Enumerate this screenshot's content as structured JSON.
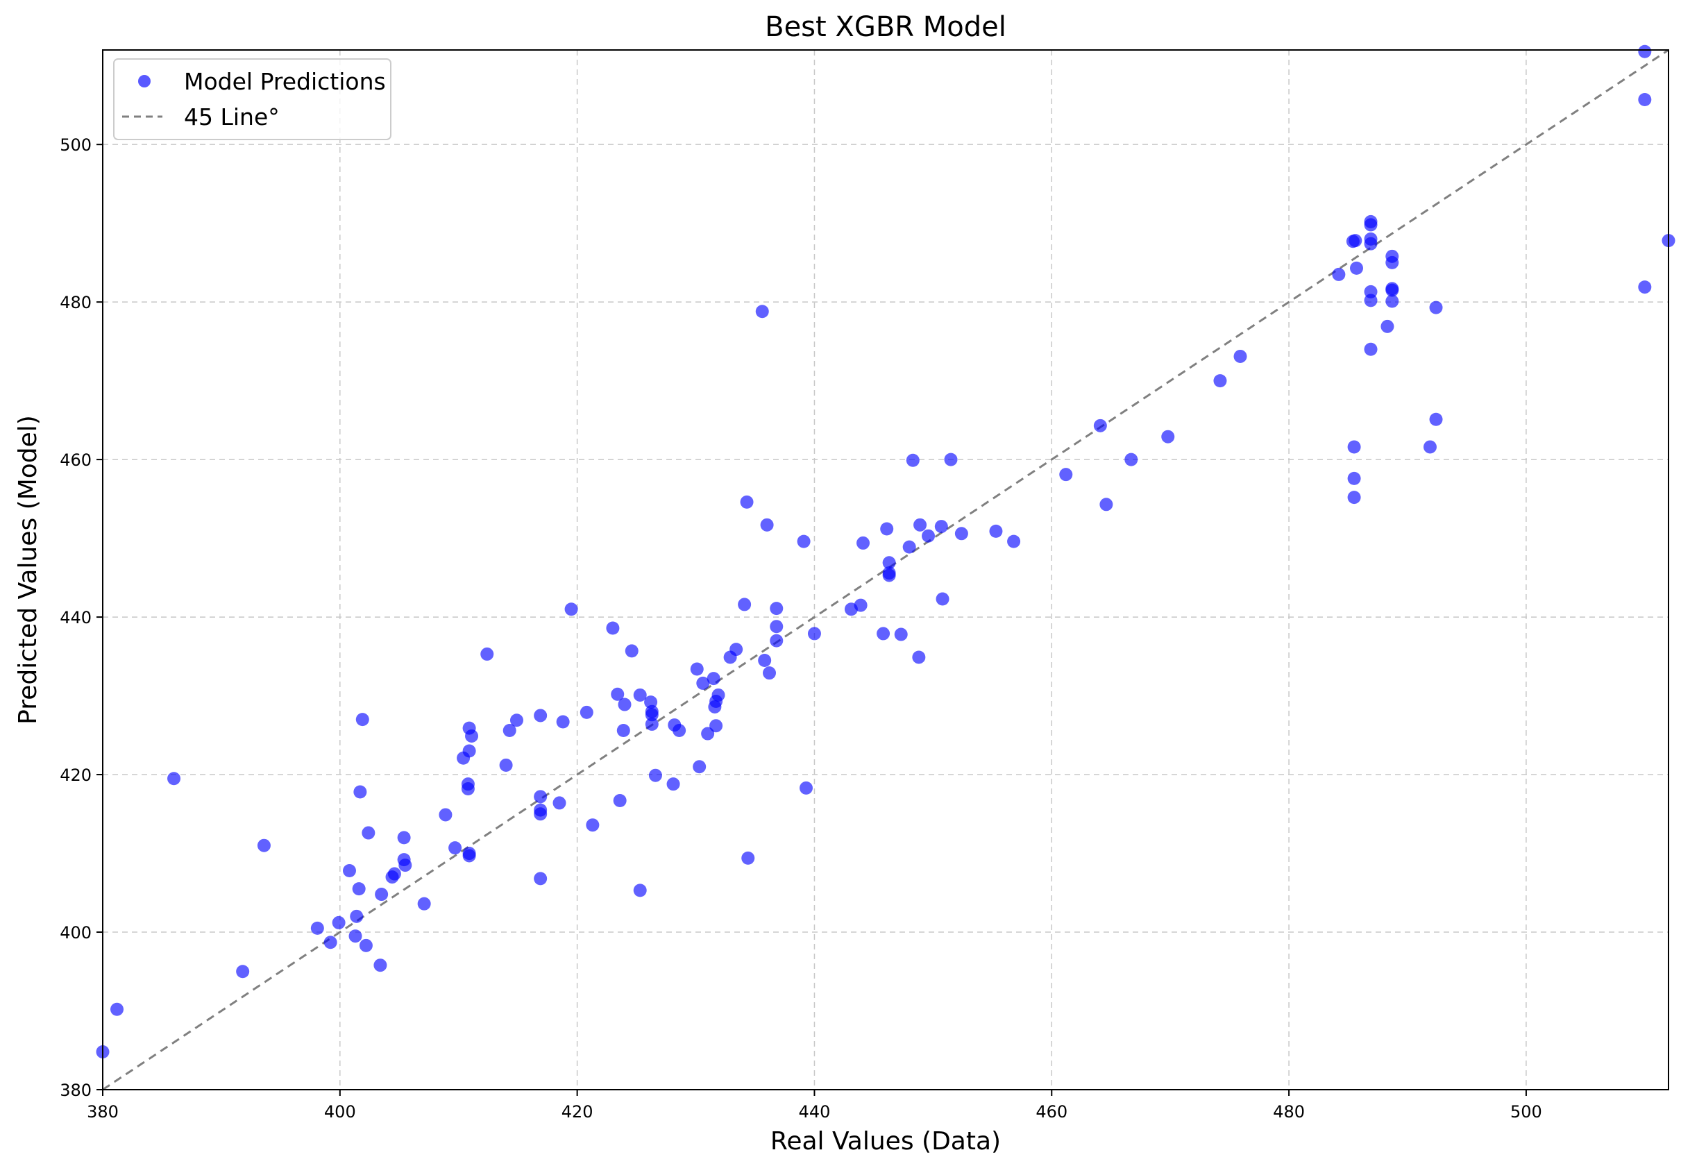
{
  "chart_data": {
    "type": "scatter",
    "title": "Best XGBR Model",
    "xlabel": "Real Values (Data)",
    "ylabel": "Predicted Values (Model)",
    "xlim": [
      380,
      512
    ],
    "ylim": [
      380,
      512
    ],
    "xticks": [
      "380",
      "400",
      "420",
      "440",
      "460",
      "480",
      "500"
    ],
    "yticks": [
      "380",
      "400",
      "420",
      "440",
      "460",
      "480",
      "500"
    ],
    "grid": true,
    "legend_position": "top-left",
    "colors": {
      "points": "#0000ff",
      "reference_line": "#808080"
    },
    "series": [
      {
        "name": "Model Predictions",
        "points": [
          [
            380.0,
            384.8
          ],
          [
            381.2,
            390.2
          ],
          [
            386.0,
            419.5
          ],
          [
            391.8,
            395.0
          ],
          [
            393.6,
            411.0
          ],
          [
            398.1,
            400.5
          ],
          [
            399.2,
            398.7
          ],
          [
            399.9,
            401.2
          ],
          [
            400.8,
            407.8
          ],
          [
            401.3,
            399.5
          ],
          [
            401.4,
            402.0
          ],
          [
            401.6,
            405.5
          ],
          [
            401.7,
            417.8
          ],
          [
            401.9,
            427.0
          ],
          [
            402.2,
            398.3
          ],
          [
            402.4,
            412.6
          ],
          [
            403.4,
            395.8
          ],
          [
            403.5,
            404.8
          ],
          [
            404.4,
            407.0
          ],
          [
            404.6,
            407.4
          ],
          [
            405.4,
            409.2
          ],
          [
            405.5,
            408.5
          ],
          [
            405.4,
            412.0
          ],
          [
            407.1,
            403.6
          ],
          [
            408.9,
            414.9
          ],
          [
            409.7,
            410.7
          ],
          [
            410.4,
            422.1
          ],
          [
            410.8,
            418.8
          ],
          [
            410.8,
            418.2
          ],
          [
            410.9,
            409.7
          ],
          [
            410.9,
            410.0
          ],
          [
            410.9,
            423.0
          ],
          [
            410.9,
            425.9
          ],
          [
            411.1,
            424.9
          ],
          [
            412.4,
            435.3
          ],
          [
            414.0,
            421.2
          ],
          [
            414.3,
            425.6
          ],
          [
            414.9,
            426.9
          ],
          [
            416.9,
            406.8
          ],
          [
            416.9,
            415.0
          ],
          [
            416.9,
            415.5
          ],
          [
            416.9,
            417.2
          ],
          [
            416.9,
            427.5
          ],
          [
            418.5,
            416.4
          ],
          [
            418.8,
            426.7
          ],
          [
            419.5,
            441.0
          ],
          [
            420.8,
            427.9
          ],
          [
            421.3,
            413.6
          ],
          [
            423.0,
            438.6
          ],
          [
            423.4,
            430.2
          ],
          [
            423.6,
            416.7
          ],
          [
            423.9,
            425.6
          ],
          [
            424.0,
            428.9
          ],
          [
            424.6,
            435.7
          ],
          [
            425.3,
            405.3
          ],
          [
            425.3,
            430.1
          ],
          [
            426.2,
            429.2
          ],
          [
            426.3,
            427.6
          ],
          [
            426.3,
            428.0
          ],
          [
            426.3,
            426.4
          ],
          [
            426.6,
            419.9
          ],
          [
            428.1,
            418.8
          ],
          [
            428.2,
            426.3
          ],
          [
            428.6,
            425.6
          ],
          [
            430.1,
            433.4
          ],
          [
            430.3,
            421.0
          ],
          [
            430.6,
            431.6
          ],
          [
            431.0,
            425.2
          ],
          [
            431.5,
            432.2
          ],
          [
            431.6,
            428.6
          ],
          [
            431.7,
            429.3
          ],
          [
            431.7,
            426.2
          ],
          [
            431.9,
            430.1
          ],
          [
            432.9,
            434.9
          ],
          [
            433.4,
            435.9
          ],
          [
            434.1,
            441.6
          ],
          [
            434.3,
            454.6
          ],
          [
            434.4,
            409.4
          ],
          [
            435.6,
            478.8
          ],
          [
            435.8,
            434.5
          ],
          [
            436.0,
            451.7
          ],
          [
            436.2,
            432.9
          ],
          [
            436.8,
            438.8
          ],
          [
            436.8,
            437.0
          ],
          [
            436.8,
            441.1
          ],
          [
            439.1,
            449.6
          ],
          [
            439.3,
            418.3
          ],
          [
            440.0,
            437.9
          ],
          [
            443.1,
            441.0
          ],
          [
            443.9,
            441.5
          ],
          [
            444.1,
            449.4
          ],
          [
            445.8,
            437.9
          ],
          [
            446.1,
            451.2
          ],
          [
            446.3,
            445.3
          ],
          [
            446.3,
            445.6
          ],
          [
            446.3,
            446.9
          ],
          [
            447.3,
            437.8
          ],
          [
            448.0,
            448.9
          ],
          [
            448.3,
            459.9
          ],
          [
            448.8,
            434.9
          ],
          [
            448.9,
            451.7
          ],
          [
            449.6,
            450.3
          ],
          [
            450.7,
            451.5
          ],
          [
            450.8,
            442.3
          ],
          [
            451.5,
            460.0
          ],
          [
            452.4,
            450.6
          ],
          [
            455.3,
            450.9
          ],
          [
            456.8,
            449.6
          ],
          [
            461.2,
            458.1
          ],
          [
            464.1,
            464.3
          ],
          [
            464.6,
            454.3
          ],
          [
            466.7,
            460.0
          ],
          [
            469.8,
            462.9
          ],
          [
            474.2,
            470.0
          ],
          [
            475.9,
            473.1
          ],
          [
            484.2,
            483.5
          ],
          [
            485.4,
            487.7
          ],
          [
            485.5,
            461.6
          ],
          [
            485.5,
            457.6
          ],
          [
            485.5,
            455.2
          ],
          [
            485.7,
            484.3
          ],
          [
            485.6,
            487.8
          ],
          [
            486.9,
            480.2
          ],
          [
            486.9,
            481.3
          ],
          [
            486.9,
            474.0
          ],
          [
            486.9,
            487.4
          ],
          [
            486.9,
            488.0
          ],
          [
            486.9,
            489.8
          ],
          [
            486.9,
            490.2
          ],
          [
            488.3,
            476.9
          ],
          [
            488.7,
            485.0
          ],
          [
            488.7,
            485.8
          ],
          [
            488.7,
            481.5
          ],
          [
            488.7,
            481.7
          ],
          [
            488.7,
            480.1
          ],
          [
            491.9,
            461.6
          ],
          [
            492.4,
            465.1
          ],
          [
            492.4,
            479.3
          ],
          [
            510.0,
            511.8
          ],
          [
            510.0,
            505.7
          ],
          [
            510.0,
            481.9
          ],
          [
            512.0,
            487.8
          ]
        ]
      },
      {
        "name": "45 Line°",
        "style": "dashed",
        "points": [
          [
            380,
            380
          ],
          [
            512,
            512
          ]
        ]
      }
    ]
  }
}
